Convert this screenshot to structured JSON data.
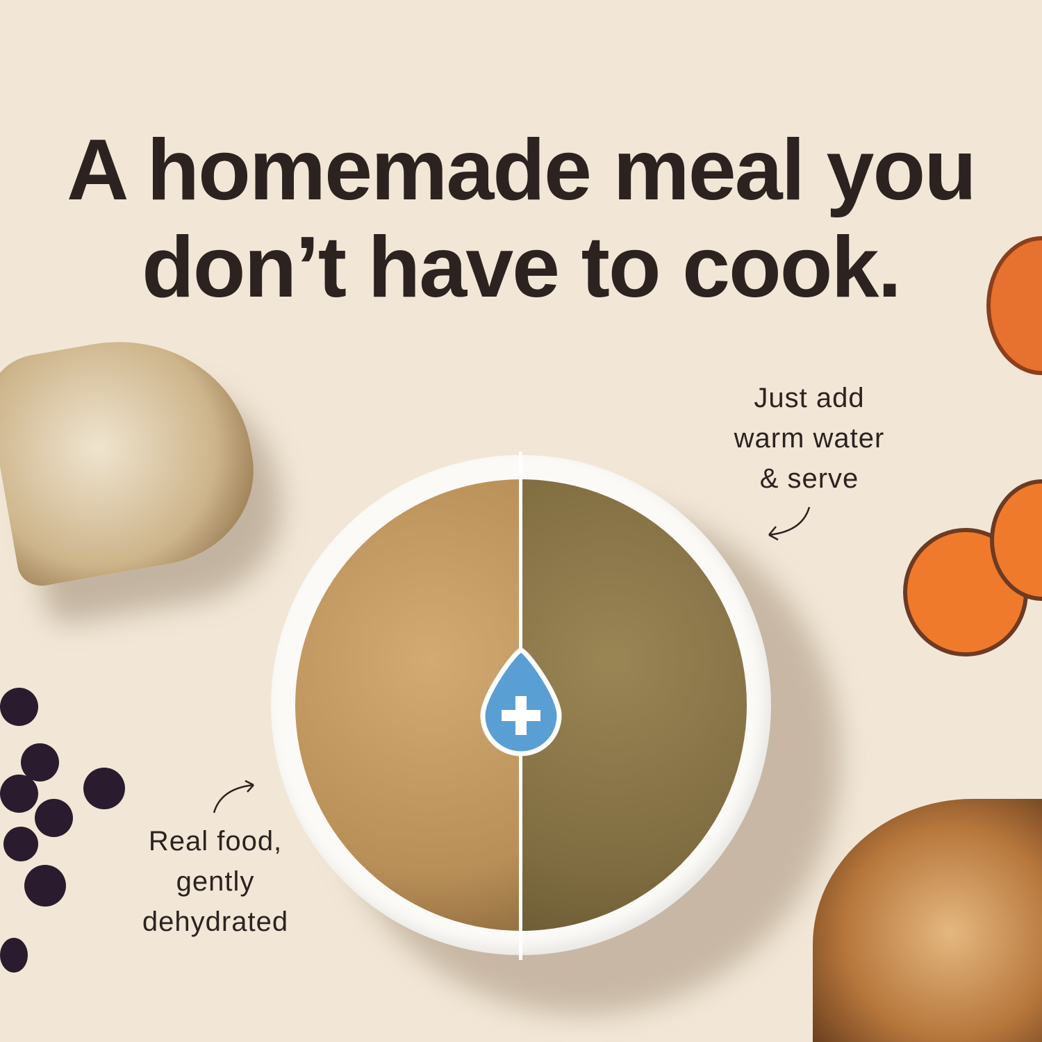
{
  "headline": {
    "line1": "A homemade meal you",
    "line2": "don’t have to cook."
  },
  "callouts": {
    "right": [
      "Just add",
      "warm water",
      "& serve"
    ],
    "left": [
      "Real food,",
      "gently",
      "dehydrated"
    ]
  },
  "icons": {
    "center": "water-drop-plus-icon",
    "arrows": "curved-arrow-icon"
  },
  "colors": {
    "background": "#f2e7d7",
    "text": "#2c2320",
    "drop": "#5a9fd4"
  }
}
